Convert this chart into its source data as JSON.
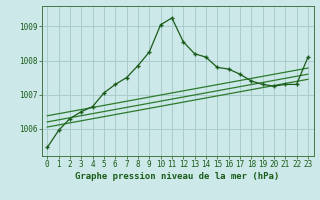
{
  "title": "Graphe pression niveau de la mer (hPa)",
  "background_color": "#cce8e8",
  "grid_color": "#aacccc",
  "line_color_main": "#1a5c1a",
  "line_color_trend": "#2d7a2d",
  "xlim": [
    -0.5,
    23.5
  ],
  "ylim": [
    1005.2,
    1009.6
  ],
  "yticks": [
    1006,
    1007,
    1008,
    1009
  ],
  "xticks": [
    0,
    1,
    2,
    3,
    4,
    5,
    6,
    7,
    8,
    9,
    10,
    11,
    12,
    13,
    14,
    15,
    16,
    17,
    18,
    19,
    20,
    21,
    22,
    23
  ],
  "main_x": [
    0,
    1,
    2,
    3,
    4,
    5,
    6,
    7,
    8,
    9,
    10,
    11,
    12,
    13,
    14,
    15,
    16,
    17,
    18,
    19,
    20,
    21,
    22,
    23
  ],
  "main_y": [
    1005.45,
    1005.95,
    1006.3,
    1006.5,
    1006.65,
    1007.05,
    1007.3,
    1007.5,
    1007.85,
    1008.25,
    1009.05,
    1009.25,
    1008.55,
    1008.2,
    1008.1,
    1007.8,
    1007.75,
    1007.6,
    1007.4,
    1007.3,
    1007.25,
    1007.3,
    1007.3,
    1008.1
  ],
  "trend1_x": [
    0,
    23
  ],
  "trend1_y": [
    1006.05,
    1007.45
  ],
  "trend2_x": [
    0,
    23
  ],
  "trend2_y": [
    1006.2,
    1007.6
  ],
  "trend3_x": [
    0,
    23
  ],
  "trend3_y": [
    1006.38,
    1007.78
  ],
  "xlabel_fontsize": 6.5,
  "tick_fontsize": 5.5
}
